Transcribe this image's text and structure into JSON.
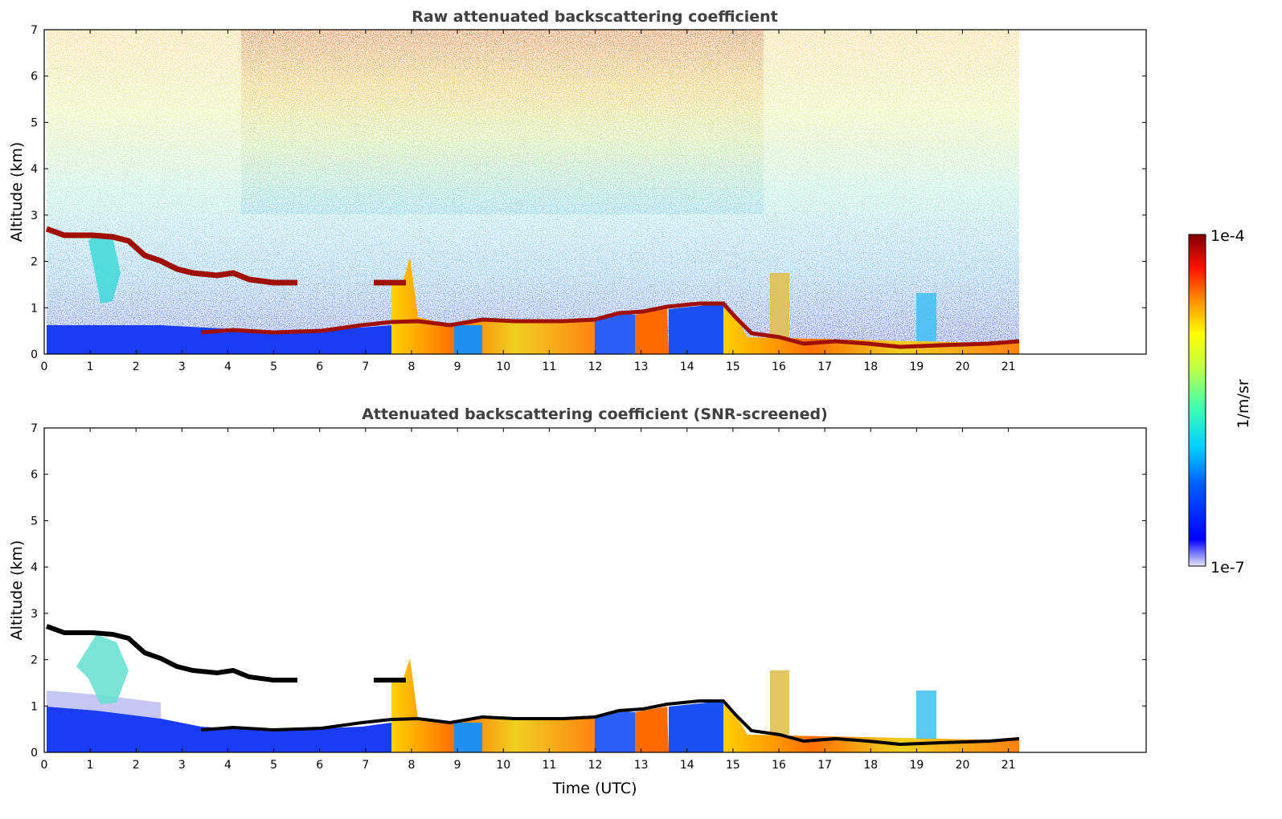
{
  "chart_data": [
    {
      "type": "heatmap",
      "title": "Raw attenuated backscattering coefficient",
      "xlabel": "",
      "ylabel": "Altitude (km)",
      "xlim": [
        0,
        24
      ],
      "ylim": [
        0,
        7
      ],
      "xticks": [
        "0",
        "1",
        "2",
        "3",
        "4",
        "5",
        "6",
        "7",
        "8",
        "9",
        "10",
        "11",
        "12",
        "13",
        "14",
        "15",
        "16",
        "17",
        "18",
        "19",
        "20",
        "21"
      ],
      "yticks": [
        "0",
        "1",
        "2",
        "3",
        "4",
        "5",
        "6",
        "7"
      ],
      "data_end_time": 21.2,
      "description_layers": [
        {
          "feature": "cloud/aerosol layer top",
          "time": [
            0,
            0.5,
            1,
            1.5,
            2,
            2.5,
            3,
            3.5,
            4,
            4.5,
            5,
            5.5,
            7.3,
            7.9
          ],
          "altitude": [
            2.6,
            2.55,
            2.55,
            2.5,
            2.1,
            1.9,
            1.8,
            1.7,
            1.75,
            1.65,
            1.55,
            1.5,
            1.55,
            1.5
          ]
        },
        {
          "feature": "boundary layer top",
          "time": [
            3.5,
            4,
            5,
            6,
            7,
            7.6,
            8,
            9,
            10,
            11,
            12,
            12.5,
            13,
            13.5,
            14,
            14.8,
            15.2,
            16,
            17,
            18,
            19,
            20,
            21.2
          ],
          "altitude": [
            0.45,
            0.5,
            0.45,
            0.5,
            0.6,
            0.65,
            0.7,
            0.6,
            0.7,
            0.7,
            0.75,
            0.95,
            0.85,
            1.05,
            1.1,
            1.1,
            0.5,
            0.3,
            0.25,
            0.2,
            0.15,
            0.2,
            0.25
          ]
        }
      ]
    },
    {
      "type": "heatmap",
      "title": "Attenuated backscattering coefficient (SNR-screened)",
      "xlabel": "Time (UTC)",
      "ylabel": "Altitude (km)",
      "xlim": [
        0,
        24
      ],
      "ylim": [
        0,
        7
      ],
      "xticks": [
        "0",
        "1",
        "2",
        "3",
        "4",
        "5",
        "6",
        "7",
        "8",
        "9",
        "10",
        "11",
        "12",
        "13",
        "14",
        "15",
        "16",
        "17",
        "18",
        "19",
        "20",
        "21"
      ],
      "yticks": [
        "0",
        "1",
        "2",
        "3",
        "4",
        "5",
        "6",
        "7"
      ],
      "data_end_time": 21.2
    }
  ],
  "colorbar": {
    "label": "1/m/sr",
    "max_label": "1e-4",
    "min_label": "1e-7",
    "scale": "log",
    "colormap": "jet",
    "colors": [
      "#e6e6f5",
      "#0000ff",
      "#00a0ff",
      "#00e0e0",
      "#80ff80",
      "#ffff00",
      "#ff8000",
      "#ff0000",
      "#800000"
    ]
  }
}
